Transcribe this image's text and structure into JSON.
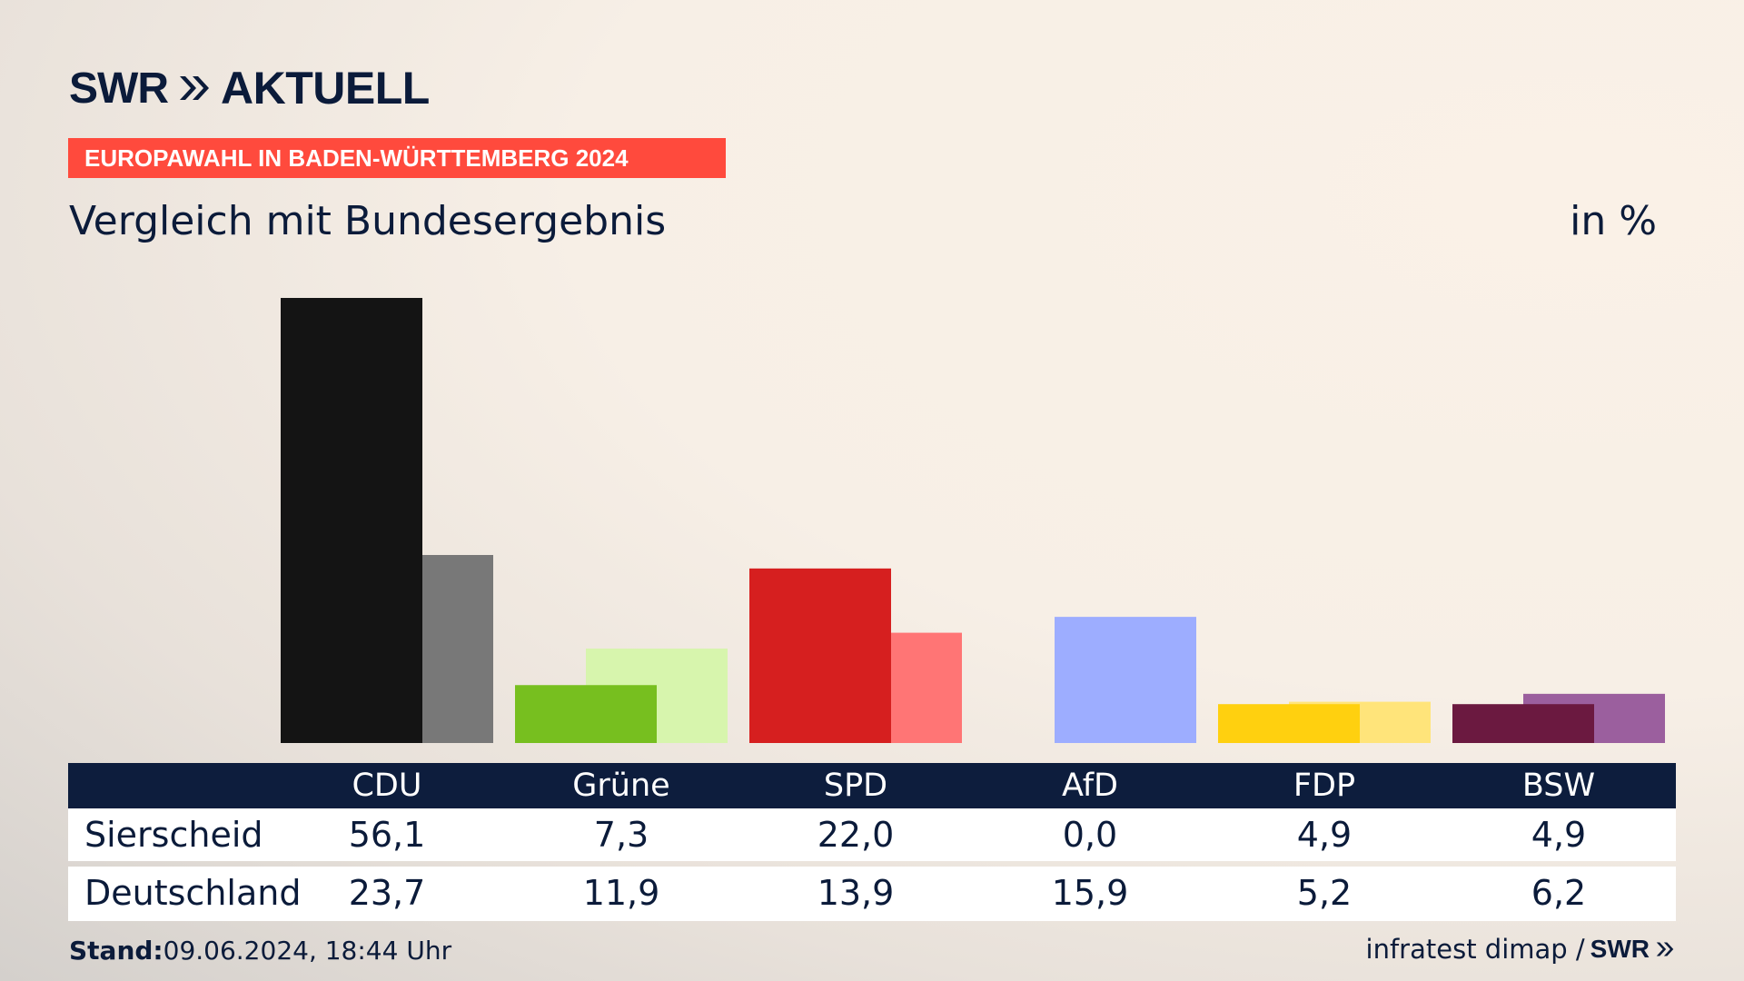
{
  "header": {
    "logo_swr": "SWR",
    "logo_title": "AKTUELL",
    "banner": "EUROPAWAHL IN BADEN-WÜRTTEMBERG 2024",
    "subtitle": "Vergleich mit Bundesergebnis",
    "unit": "in %"
  },
  "chart_data": {
    "type": "bar",
    "categories": [
      "CDU",
      "Grüne",
      "SPD",
      "AfD",
      "FDP",
      "BSW"
    ],
    "series": [
      {
        "name": "Sierscheid",
        "values": [
          56.1,
          7.3,
          22.0,
          0.0,
          4.9,
          4.9
        ]
      },
      {
        "name": "Deutschland",
        "values": [
          23.7,
          11.9,
          13.9,
          15.9,
          5.2,
          6.2
        ]
      }
    ],
    "display": {
      "Sierscheid": [
        "56,1",
        "7,3",
        "22,0",
        "0,0",
        "4,9",
        "4,9"
      ],
      "Deutschland": [
        "23,7",
        "11,9",
        "13,9",
        "15,9",
        "5,2",
        "6,2"
      ]
    },
    "colors": {
      "Sierscheid": [
        "#141414",
        "#77bf1f",
        "#d61f1f",
        "#9dadff",
        "#ffd00f",
        "#6b1940"
      ],
      "Deutschland": [
        "#787878",
        "#d7f5ad",
        "#ff7575",
        "#9dadff",
        "#ffe47a",
        "#9b5f9e"
      ]
    },
    "ylim": [
      0,
      56.1
    ]
  },
  "table": {
    "rows": [
      "Sierscheid",
      "Deutschland"
    ]
  },
  "footer": {
    "stand_label": "Stand:",
    "stand_value": "09.06.2024, 18:44 Uhr",
    "source": "infratest dimap /",
    "source_logo": "SWR"
  }
}
